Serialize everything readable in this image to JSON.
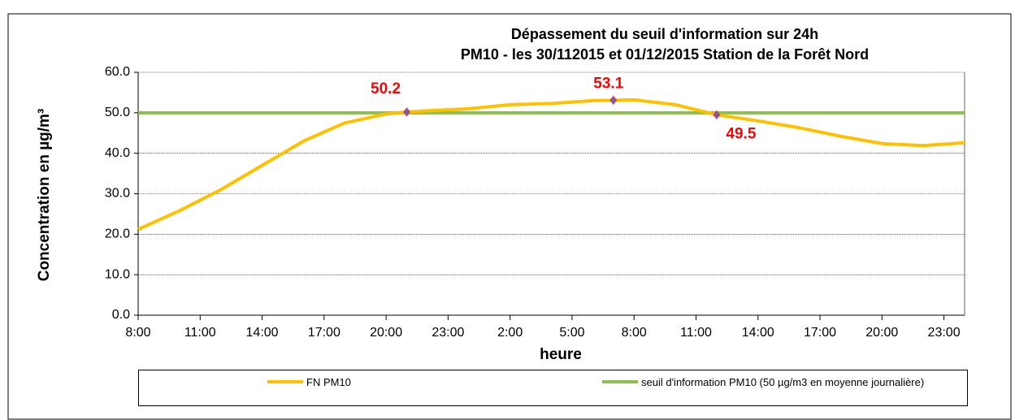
{
  "chart_data": {
    "type": "line",
    "title": "Dépassement du seuil d'information sur 24h",
    "subtitle": "PM10 - les 30/112015 et 01/12/2015 Station de la Forêt Nord",
    "x_label": "heure",
    "y_label": "Concentration en µg/m³",
    "xlim": [
      0,
      40
    ],
    "xticks": [
      {
        "value": 0,
        "label": "8:00"
      },
      {
        "value": 3,
        "label": "11:00"
      },
      {
        "value": 6,
        "label": "14:00"
      },
      {
        "value": 9,
        "label": "17:00"
      },
      {
        "value": 12,
        "label": "20:00"
      },
      {
        "value": 15,
        "label": "23:00"
      },
      {
        "value": 18,
        "label": "2:00"
      },
      {
        "value": 21,
        "label": "5:00"
      },
      {
        "value": 24,
        "label": "8:00"
      },
      {
        "value": 27,
        "label": "11:00"
      },
      {
        "value": 30,
        "label": "14:00"
      },
      {
        "value": 33,
        "label": "17:00"
      },
      {
        "value": 36,
        "label": "20:00"
      },
      {
        "value": 39,
        "label": "23:00"
      }
    ],
    "ylim": [
      0,
      60
    ],
    "yticks": [
      {
        "value": 0,
        "label": "0.0"
      },
      {
        "value": 10,
        "label": "10.0"
      },
      {
        "value": 20,
        "label": "20.0"
      },
      {
        "value": 30,
        "label": "30.0"
      },
      {
        "value": 40,
        "label": "40.0"
      },
      {
        "value": 50,
        "label": "50.0"
      },
      {
        "value": 60,
        "label": "60.0"
      }
    ],
    "grid": true,
    "series": [
      {
        "name": "FN PM10",
        "color": "#ffc000",
        "x": [
          0,
          2,
          4,
          6,
          8,
          10,
          12,
          13,
          14,
          16,
          18,
          20,
          22,
          23,
          24,
          26,
          28,
          30,
          32,
          34,
          36,
          38,
          40
        ],
        "values": [
          21.2,
          25.8,
          31,
          37,
          43,
          47.5,
          49.7,
          50.2,
          50.5,
          51,
          52,
          52.3,
          53,
          53.1,
          53.2,
          52,
          49.5,
          48,
          46.3,
          44.2,
          42.4,
          41.9,
          42.6
        ]
      },
      {
        "name": "seuil d'information PM10 (50 µg/m3 en moyenne journalière)",
        "color": "#8cbf4f",
        "x": [
          0,
          40
        ],
        "values": [
          50,
          50
        ]
      }
    ],
    "markers": {
      "color": "#7060a8",
      "x": [
        13,
        23,
        28
      ],
      "values": [
        50.2,
        53.1,
        49.5
      ]
    }
  }
}
